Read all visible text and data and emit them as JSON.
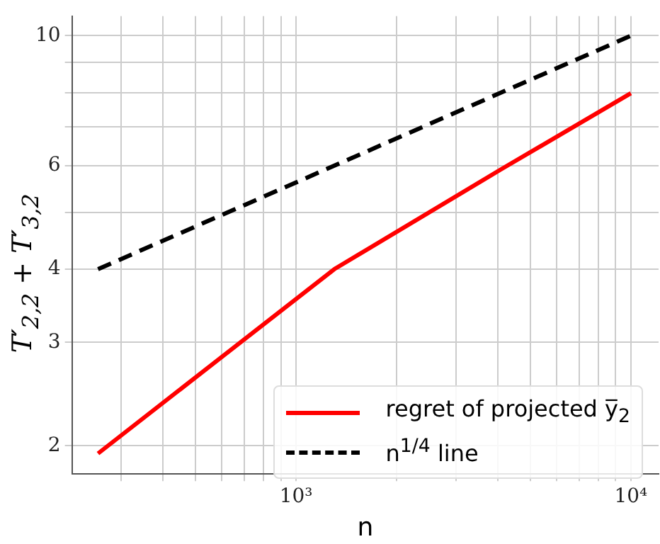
{
  "chart_data": {
    "type": "line",
    "xlabel": "n",
    "ylabel": "T′$_{2,2}$ + T′$_{3,2}$",
    "log": "xy",
    "grid": true,
    "legend": "bottom right",
    "xlim": [
      214,
      12100
    ],
    "ylim": [
      1.79,
      10.8
    ],
    "xticks": [
      {
        "value": 300,
        "label": null
      },
      {
        "value": 400,
        "label": null
      },
      {
        "value": 500,
        "label": null
      },
      {
        "value": 600,
        "label": null
      },
      {
        "value": 700,
        "label": null
      },
      {
        "value": 800,
        "label": null
      },
      {
        "value": 900,
        "label": null
      },
      {
        "value": 1000,
        "label": "10³"
      },
      {
        "value": 2000,
        "label": null
      },
      {
        "value": 3000,
        "label": null
      },
      {
        "value": 4000,
        "label": null
      },
      {
        "value": 5000,
        "label": null
      },
      {
        "value": 6000,
        "label": null
      },
      {
        "value": 7000,
        "label": null
      },
      {
        "value": 8000,
        "label": null
      },
      {
        "value": 9000,
        "label": null
      },
      {
        "value": 10000,
        "label": "10⁴"
      }
    ],
    "yticks": [
      2,
      3,
      4,
      {
        "value": 5,
        "label": null
      },
      6,
      {
        "value": 7,
        "label": null
      },
      {
        "value": 8,
        "label": null
      },
      {
        "value": 9,
        "label": null
      },
      10
    ],
    "series": [
      {
        "name": "regret of projected y̅$_{2}$",
        "color": "#ff0000",
        "line_style": "solid",
        "x": [
          256,
          1300,
          4096,
          10000
        ],
        "values": [
          1.94,
          4.0,
          5.92,
          7.98
        ]
      },
      {
        "name": "n$^{1/4}$ line",
        "color": "#000000",
        "line_style": "dashed",
        "x": [
          256,
          10000
        ],
        "values": [
          4,
          10
        ]
      }
    ]
  }
}
